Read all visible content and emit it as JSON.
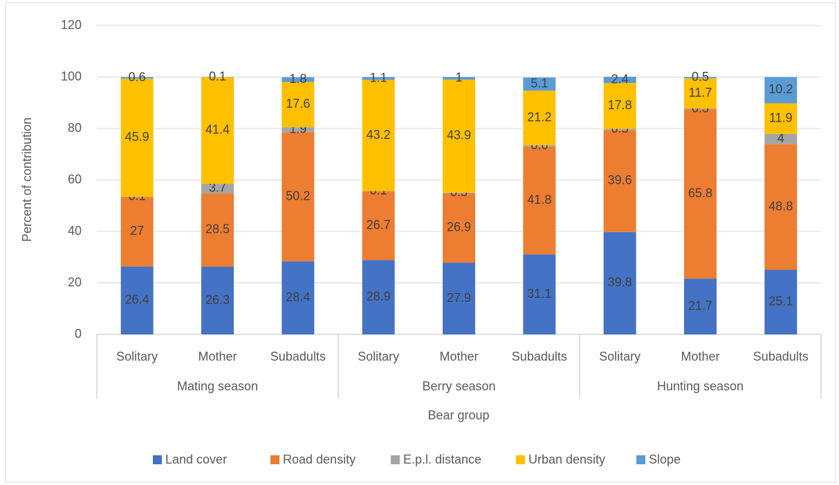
{
  "chart_data": {
    "type": "stacked_bar",
    "x_label": "Bear group",
    "y_label": "Percent of contribution",
    "groups": [
      "Mating season",
      "Berry season",
      "Hunting season"
    ],
    "categories": [
      "Solitary",
      "Mother",
      "Subadults",
      "Solitary",
      "Mother",
      "Subadults",
      "Solitary",
      "Mother",
      "Subadults"
    ],
    "series": [
      {
        "name": "Land cover",
        "color": "#4472c4",
        "values": [
          26.4,
          26.3,
          28.4,
          28.9,
          27.9,
          31.1,
          39.8,
          21.7,
          25.1
        ]
      },
      {
        "name": "Road density",
        "color": "#ed7d31",
        "values": [
          27,
          28.5,
          50.2,
          26.7,
          26.9,
          41.8,
          39.6,
          65.8,
          48.8
        ]
      },
      {
        "name": "E.p.l. distance",
        "color": "#a5a5a5",
        "values": [
          0.1,
          3.7,
          1.9,
          0.1,
          0.3,
          0.6,
          0.5,
          0.3,
          4
        ]
      },
      {
        "name": "Urban density",
        "color": "#ffc000",
        "values": [
          45.9,
          41.4,
          17.6,
          43.2,
          43.9,
          21.2,
          17.8,
          11.7,
          11.9
        ]
      },
      {
        "name": "Slope",
        "color": "#5b9bd5",
        "values": [
          0.6,
          0.1,
          1.8,
          1.1,
          1,
          5.1,
          2.4,
          0.5,
          10.2
        ]
      }
    ],
    "ylim": [
      0,
      120
    ],
    "yticks": [
      0,
      20,
      40,
      60,
      80,
      100,
      120
    ],
    "grid": true,
    "legend": "bottom"
  }
}
